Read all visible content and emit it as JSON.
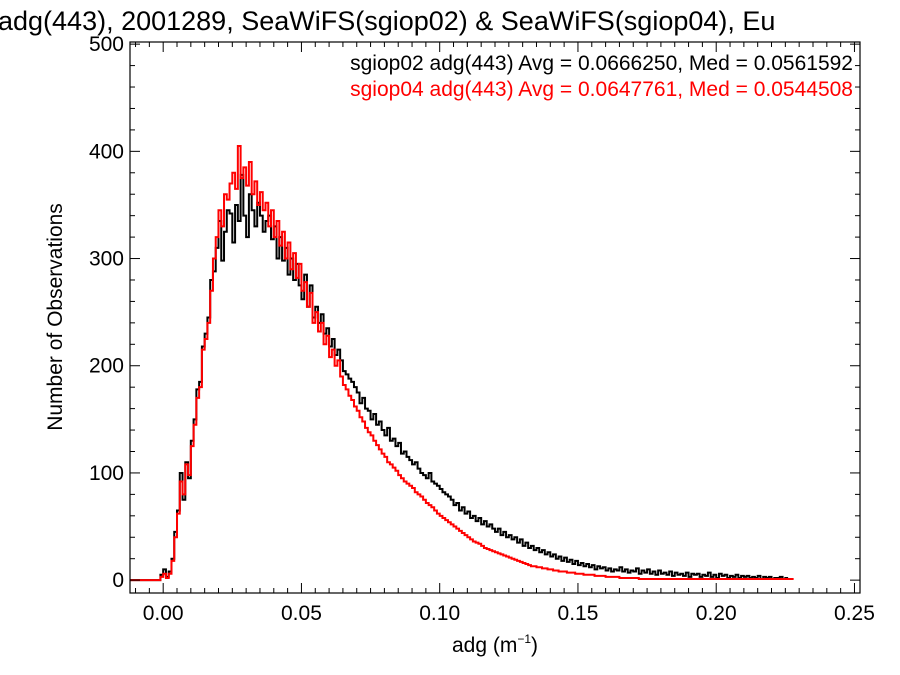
{
  "chart_data": {
    "type": "line",
    "title": "adg(443), 2001289, SeaWiFS(sgiop02) & SeaWiFS(sgiop04), Eu",
    "xlabel": "adg (m",
    "xlabel_sup": "−1",
    "xlabel_close": ")",
    "ylabel": "Number of Observations",
    "xlim": [
      -0.012,
      0.252
    ],
    "ylim": [
      -12,
      502
    ],
    "xticks": [
      0.0,
      0.05,
      0.1,
      0.15,
      0.2,
      0.25
    ],
    "xtick_labels": [
      "0.00",
      "0.05",
      "0.10",
      "0.15",
      "0.20",
      "0.25"
    ],
    "yticks": [
      0,
      100,
      200,
      300,
      400,
      500
    ],
    "ytick_labels": [
      "0",
      "100",
      "200",
      "300",
      "400",
      "500"
    ],
    "bin_width": 0.001,
    "x_start": -0.012,
    "series": [
      {
        "name": "sgiop02 adg(443) Avg = 0.0666250, Med = 0.0561592",
        "color": "#000000",
        "values": [
          0,
          0,
          0,
          0,
          0,
          0,
          0,
          0,
          0,
          0,
          0,
          5,
          10,
          3,
          8,
          20,
          45,
          65,
          100,
          75,
          110,
          95,
          130,
          150,
          178,
          185,
          218,
          230,
          245,
          280,
          288,
          310,
          335,
          298,
          325,
          345,
          342,
          315,
          350,
          335,
          378,
          340,
          320,
          360,
          345,
          330,
          352,
          340,
          325,
          335,
          340,
          318,
          330,
          300,
          320,
          298,
          310,
          285,
          300,
          280,
          295,
          275,
          262,
          285,
          255,
          275,
          245,
          255,
          240,
          248,
          230,
          235,
          218,
          225,
          210,
          215,
          205,
          195,
          192,
          188,
          185,
          180,
          175,
          165,
          170,
          160,
          158,
          150,
          155,
          145,
          148,
          140,
          135,
          142,
          130,
          132,
          125,
          128,
          118,
          120,
          115,
          112,
          108,
          110,
          104,
          100,
          98,
          95,
          100,
          92,
          90,
          88,
          85,
          82,
          80,
          78,
          75,
          70,
          72,
          65,
          68,
          62,
          64,
          58,
          60,
          55,
          58,
          52,
          55,
          50,
          52,
          48,
          45,
          48,
          42,
          45,
          40,
          42,
          38,
          40,
          35,
          38,
          32,
          35,
          30,
          32,
          28,
          30,
          26,
          28,
          24,
          26,
          22,
          24,
          20,
          22,
          18,
          21,
          17,
          19,
          15,
          18,
          14,
          16,
          13,
          15,
          12,
          14,
          10,
          13,
          11,
          12,
          9,
          11,
          8,
          10,
          9,
          12,
          8,
          10,
          7,
          9,
          8,
          11,
          6,
          9,
          7,
          10,
          6,
          8,
          5,
          9,
          6,
          7,
          5,
          8,
          4,
          7,
          5,
          6,
          4,
          7,
          3,
          6,
          5,
          6,
          3,
          5,
          4,
          7,
          3,
          5,
          2,
          6,
          4,
          5,
          2,
          4,
          3,
          5,
          2,
          4,
          3,
          4,
          2,
          3,
          2,
          4,
          1,
          3,
          2,
          3,
          1,
          2,
          2,
          3,
          1,
          2
        ]
      },
      {
        "name": "sgiop04 adg(443) Avg = 0.0647761, Med = 0.0544508",
        "color": "#ff0000",
        "values": [
          0,
          0,
          0,
          0,
          0,
          0,
          0,
          0,
          0,
          0,
          0,
          3,
          6,
          2,
          6,
          18,
          40,
          62,
          92,
          80,
          108,
          98,
          125,
          145,
          170,
          180,
          215,
          225,
          240,
          270,
          300,
          320,
          345,
          330,
          360,
          355,
          370,
          380,
          365,
          405,
          375,
          385,
          368,
          390,
          360,
          372,
          350,
          362,
          345,
          352,
          330,
          345,
          320,
          335,
          312,
          325,
          300,
          315,
          290,
          305,
          282,
          295,
          270,
          278,
          255,
          268,
          240,
          250,
          232,
          240,
          220,
          228,
          208,
          215,
          200,
          205,
          190,
          182,
          178,
          172,
          168,
          162,
          158,
          152,
          148,
          142,
          138,
          135,
          130,
          126,
          122,
          118,
          115,
          110,
          108,
          105,
          102,
          98,
          95,
          92,
          90,
          88,
          86,
          82,
          80,
          78,
          75,
          72,
          70,
          68,
          65,
          62,
          60,
          58,
          56,
          54,
          52,
          50,
          48,
          46,
          44,
          42,
          40,
          38,
          36,
          35,
          34,
          32,
          30,
          29,
          28,
          27,
          26,
          25,
          24,
          23,
          22,
          21,
          20,
          19,
          18,
          17,
          16,
          15,
          14,
          13,
          13,
          12,
          12,
          11,
          11,
          10,
          10,
          9,
          9,
          8,
          8,
          8,
          7,
          7,
          7,
          6,
          6,
          6,
          5,
          5,
          5,
          5,
          4,
          4,
          4,
          4,
          3,
          3,
          3,
          3,
          3,
          2,
          2,
          2,
          2,
          2,
          2,
          2,
          1,
          1,
          1,
          1,
          1,
          1,
          1,
          1,
          1,
          1,
          1,
          1,
          1,
          1,
          1,
          1,
          1,
          1,
          1,
          1,
          1,
          1,
          1,
          1,
          1,
          1,
          1,
          1,
          1,
          1,
          1,
          1,
          1,
          1,
          1,
          1,
          1,
          1,
          1,
          1,
          1,
          1,
          1,
          1,
          1,
          1,
          1,
          1,
          1,
          1,
          1,
          1,
          1,
          1,
          1,
          1
        ]
      }
    ],
    "legend": "top-right"
  }
}
